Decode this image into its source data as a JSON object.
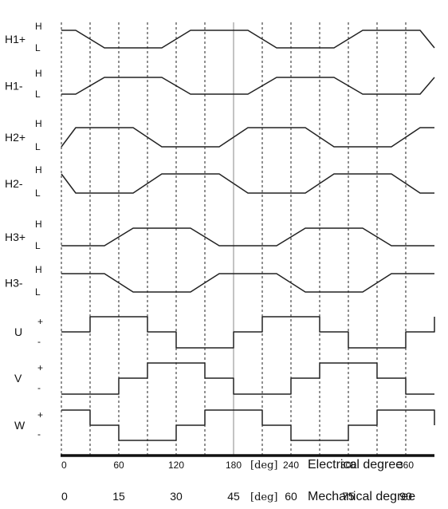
{
  "signals": [
    {
      "name": "H1+",
      "kind": "hall",
      "labels": [
        "H",
        "L"
      ],
      "points": [
        [
          0,
          "H"
        ],
        [
          15,
          "H"
        ],
        [
          45,
          "L"
        ],
        [
          105,
          "L"
        ],
        [
          135,
          "H"
        ],
        [
          195,
          "H"
        ],
        [
          225,
          "L"
        ],
        [
          285,
          "L"
        ],
        [
          315,
          "H"
        ],
        [
          375,
          "H"
        ],
        [
          390,
          "L"
        ]
      ]
    },
    {
      "name": "H1-",
      "kind": "hall",
      "labels": [
        "H",
        "L"
      ],
      "points": [
        [
          0,
          "L"
        ],
        [
          15,
          "L"
        ],
        [
          45,
          "H"
        ],
        [
          105,
          "H"
        ],
        [
          135,
          "L"
        ],
        [
          195,
          "L"
        ],
        [
          225,
          "H"
        ],
        [
          285,
          "H"
        ],
        [
          315,
          "L"
        ],
        [
          375,
          "L"
        ],
        [
          390,
          "H"
        ]
      ]
    },
    {
      "name": "H2+",
      "kind": "hall",
      "labels": [
        "H",
        "L"
      ],
      "points": [
        [
          0,
          "L"
        ],
        [
          15,
          "H"
        ],
        [
          75,
          "H"
        ],
        [
          105,
          "L"
        ],
        [
          165,
          "L"
        ],
        [
          195,
          "H"
        ],
        [
          255,
          "H"
        ],
        [
          285,
          "L"
        ],
        [
          345,
          "L"
        ],
        [
          375,
          "H"
        ],
        [
          390,
          "H"
        ]
      ]
    },
    {
      "name": "H2-",
      "kind": "hall",
      "labels": [
        "H",
        "L"
      ],
      "points": [
        [
          0,
          "H"
        ],
        [
          15,
          "L"
        ],
        [
          75,
          "L"
        ],
        [
          105,
          "H"
        ],
        [
          165,
          "H"
        ],
        [
          195,
          "L"
        ],
        [
          255,
          "L"
        ],
        [
          285,
          "H"
        ],
        [
          345,
          "H"
        ],
        [
          375,
          "L"
        ],
        [
          390,
          "L"
        ]
      ]
    },
    {
      "name": "H3+",
      "kind": "hall",
      "labels": [
        "H",
        "L"
      ],
      "points": [
        [
          0,
          "L"
        ],
        [
          45,
          "L"
        ],
        [
          75,
          "H"
        ],
        [
          135,
          "H"
        ],
        [
          165,
          "L"
        ],
        [
          225,
          "L"
        ],
        [
          255,
          "H"
        ],
        [
          315,
          "H"
        ],
        [
          345,
          "L"
        ],
        [
          390,
          "L"
        ]
      ]
    },
    {
      "name": "H3-",
      "kind": "hall",
      "labels": [
        "H",
        "L"
      ],
      "points": [
        [
          0,
          "H"
        ],
        [
          45,
          "H"
        ],
        [
          75,
          "L"
        ],
        [
          135,
          "L"
        ],
        [
          165,
          "H"
        ],
        [
          225,
          "H"
        ],
        [
          255,
          "L"
        ],
        [
          315,
          "L"
        ],
        [
          345,
          "H"
        ],
        [
          390,
          "H"
        ]
      ]
    },
    {
      "name": "U",
      "kind": "phase",
      "labels": [
        "+",
        "-"
      ],
      "points": [
        [
          0,
          "0"
        ],
        [
          30,
          "0"
        ],
        [
          30,
          "+"
        ],
        [
          90,
          "+"
        ],
        [
          90,
          "0"
        ],
        [
          120,
          "0"
        ],
        [
          120,
          "-"
        ],
        [
          180,
          "-"
        ],
        [
          180,
          "0"
        ],
        [
          210,
          "0"
        ],
        [
          210,
          "+"
        ],
        [
          270,
          "+"
        ],
        [
          270,
          "0"
        ],
        [
          300,
          "0"
        ],
        [
          300,
          "-"
        ],
        [
          360,
          "-"
        ],
        [
          360,
          "0"
        ],
        [
          390,
          "0"
        ],
        [
          390,
          "+"
        ]
      ]
    },
    {
      "name": "V",
      "kind": "phase",
      "labels": [
        "+",
        "-"
      ],
      "points": [
        [
          0,
          "-"
        ],
        [
          60,
          "-"
        ],
        [
          60,
          "0"
        ],
        [
          90,
          "0"
        ],
        [
          90,
          "+"
        ],
        [
          150,
          "+"
        ],
        [
          150,
          "0"
        ],
        [
          180,
          "0"
        ],
        [
          180,
          "-"
        ],
        [
          240,
          "-"
        ],
        [
          240,
          "0"
        ],
        [
          270,
          "0"
        ],
        [
          270,
          "+"
        ],
        [
          330,
          "+"
        ],
        [
          330,
          "0"
        ],
        [
          360,
          "0"
        ],
        [
          360,
          "-"
        ],
        [
          390,
          "-"
        ]
      ]
    },
    {
      "name": "W",
      "kind": "phase",
      "labels": [
        "+",
        "-"
      ],
      "points": [
        [
          0,
          "+"
        ],
        [
          30,
          "+"
        ],
        [
          30,
          "0"
        ],
        [
          60,
          "0"
        ],
        [
          60,
          "-"
        ],
        [
          120,
          "-"
        ],
        [
          120,
          "0"
        ],
        [
          150,
          "0"
        ],
        [
          150,
          "+"
        ],
        [
          210,
          "+"
        ],
        [
          210,
          "0"
        ],
        [
          240,
          "0"
        ],
        [
          240,
          "-"
        ],
        [
          300,
          "-"
        ],
        [
          300,
          "0"
        ],
        [
          330,
          "0"
        ],
        [
          330,
          "+"
        ],
        [
          390,
          "+"
        ],
        [
          390,
          "0"
        ]
      ]
    }
  ],
  "electrical_ticks": [
    "0",
    "60",
    "120",
    "180",
    "240",
    "300",
    "360"
  ],
  "electrical_unit": "[deg]",
  "electrical_title": "Electrical degree",
  "mechanical_ticks": [
    "0",
    "15",
    "30",
    "45",
    "60",
    "75",
    "90"
  ],
  "mechanical_unit": "[deg]",
  "mechanical_title": "Mechanical degree"
}
